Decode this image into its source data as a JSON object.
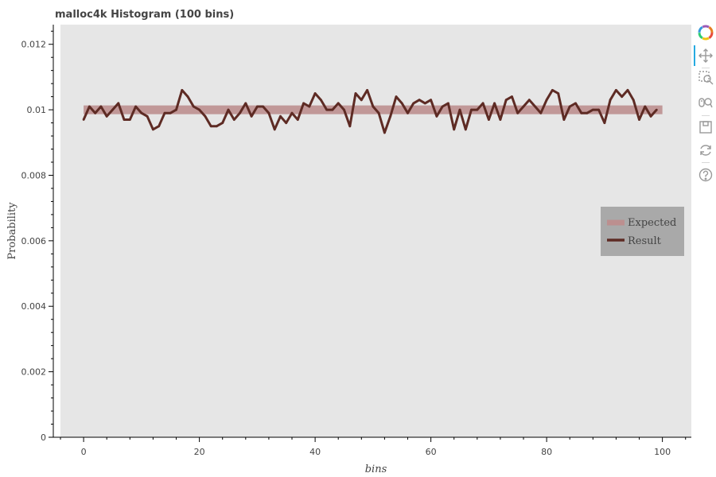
{
  "chart_data": {
    "type": "line",
    "title": "malloc4k Histogram (100 bins)",
    "xlabel": "bins",
    "ylabel": "Probability",
    "xlim": [
      -4,
      105
    ],
    "ylim": [
      0,
      0.0126
    ],
    "x_ticks": [
      0,
      20,
      40,
      60,
      80,
      100
    ],
    "x_tick_labels": [
      "0",
      "20",
      "40",
      "60",
      "80",
      "100"
    ],
    "y_ticks": [
      0,
      0.002,
      0.004,
      0.006,
      0.008,
      0.01,
      0.012
    ],
    "y_tick_labels": [
      "0",
      "0.002",
      "0.004",
      "0.006",
      "0.008",
      "0.01",
      "0.012"
    ],
    "background_color": "#e6e6e6",
    "grid": false,
    "legend": {
      "position": "right",
      "entries": [
        "Expected",
        "Result"
      ]
    },
    "series": [
      {
        "name": "Expected",
        "color": "#bc8f8f",
        "x": [
          0,
          100
        ],
        "y": [
          0.01,
          0.01
        ]
      },
      {
        "name": "Result",
        "color": "#5e2b24",
        "x": [
          0,
          1,
          2,
          3,
          4,
          5,
          6,
          7,
          8,
          9,
          10,
          11,
          12,
          13,
          14,
          15,
          16,
          17,
          18,
          19,
          20,
          21,
          22,
          23,
          24,
          25,
          26,
          27,
          28,
          29,
          30,
          31,
          32,
          33,
          34,
          35,
          36,
          37,
          38,
          39,
          40,
          41,
          42,
          43,
          44,
          45,
          46,
          47,
          48,
          49,
          50,
          51,
          52,
          53,
          54,
          55,
          56,
          57,
          58,
          59,
          60,
          61,
          62,
          63,
          64,
          65,
          66,
          67,
          68,
          69,
          70,
          71,
          72,
          73,
          74,
          75,
          76,
          77,
          78,
          79,
          80,
          81,
          82,
          83,
          84,
          85,
          86,
          87,
          88,
          89,
          90,
          91,
          92,
          93,
          94,
          95,
          96,
          97,
          98,
          99
        ],
        "y": [
          0.0097,
          0.0101,
          0.0099,
          0.0101,
          0.0098,
          0.01,
          0.0102,
          0.0097,
          0.0097,
          0.0101,
          0.0099,
          0.0098,
          0.0094,
          0.0095,
          0.0099,
          0.0099,
          0.01,
          0.0106,
          0.0104,
          0.0101,
          0.01,
          0.0098,
          0.0095,
          0.0095,
          0.0096,
          0.01,
          0.0097,
          0.0099,
          0.0102,
          0.0098,
          0.0101,
          0.0101,
          0.0099,
          0.0094,
          0.0098,
          0.0096,
          0.0099,
          0.0097,
          0.0102,
          0.0101,
          0.0105,
          0.0103,
          0.01,
          0.01,
          0.0102,
          0.01,
          0.0095,
          0.0105,
          0.0103,
          0.0106,
          0.0101,
          0.0099,
          0.0093,
          0.0098,
          0.0104,
          0.0102,
          0.0099,
          0.0102,
          0.0103,
          0.0102,
          0.0103,
          0.0098,
          0.0101,
          0.0102,
          0.0094,
          0.01,
          0.0094,
          0.01,
          0.01,
          0.0102,
          0.0097,
          0.0102,
          0.0097,
          0.0103,
          0.0104,
          0.0099,
          0.0101,
          0.0103,
          0.0101,
          0.0099,
          0.0103,
          0.0106,
          0.0105,
          0.0097,
          0.0101,
          0.0102,
          0.0099,
          0.0099,
          0.01,
          0.01,
          0.0096,
          0.0103,
          0.0106,
          0.0104,
          0.0106,
          0.0103,
          0.0097,
          0.0101,
          0.0098,
          0.01
        ]
      }
    ]
  },
  "toolbar": {
    "tools": [
      "bokeh-logo-icon",
      "pan-icon",
      "box-zoom-icon",
      "wheel-zoom-icon",
      "save-icon",
      "reset-icon",
      "help-icon"
    ],
    "active": "pan-icon"
  }
}
